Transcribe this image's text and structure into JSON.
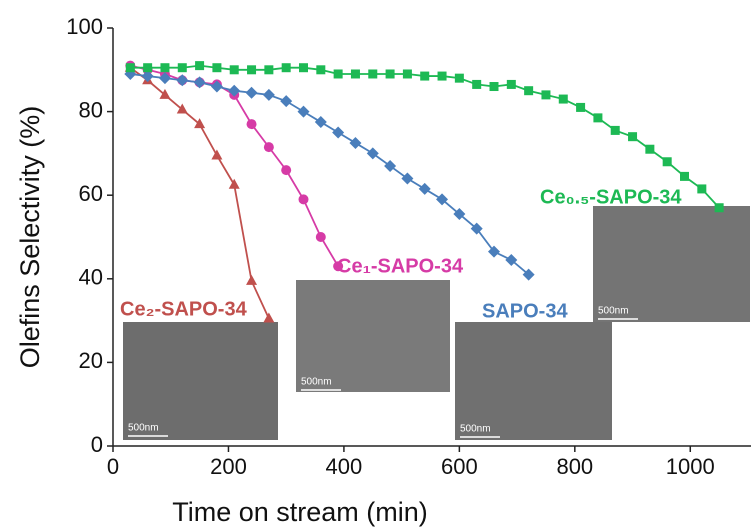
{
  "chart_data": {
    "type": "line",
    "xlabel": "Time on stream (min)",
    "ylabel": "Olefins Selectivity (%)",
    "xlim": [
      0,
      1100
    ],
    "xticks": [
      0,
      200,
      400,
      600,
      800,
      1000
    ],
    "ylim": [
      0,
      100
    ],
    "yticks": [
      0,
      20,
      40,
      60,
      80,
      100
    ],
    "series": [
      {
        "name": "Ce₂-SAPO-34",
        "color": "#c0504d",
        "marker": "triangle",
        "x": [
          30,
          60,
          90,
          120,
          150,
          180,
          210,
          240,
          270
        ],
        "values": [
          90.5,
          87.5,
          84,
          80.5,
          77,
          69.5,
          62.5,
          39.5,
          30.5
        ]
      },
      {
        "name": "Ce₁-SAPO-34",
        "color": "#d63ba6",
        "marker": "circle",
        "x": [
          30,
          60,
          90,
          120,
          150,
          180,
          210,
          240,
          270,
          300,
          330,
          360,
          390
        ],
        "values": [
          91,
          90,
          89,
          87.5,
          87,
          86.5,
          84,
          77,
          71.5,
          66,
          59,
          50,
          43
        ]
      },
      {
        "name": "SAPO-34",
        "color": "#4a7ebb",
        "marker": "diamond",
        "x": [
          30,
          60,
          90,
          120,
          150,
          180,
          210,
          240,
          270,
          300,
          330,
          360,
          390,
          420,
          450,
          480,
          510,
          540,
          570,
          600,
          630,
          660,
          690,
          720
        ],
        "values": [
          89,
          88.5,
          88,
          87.5,
          87,
          86,
          85,
          84.5,
          84,
          82.5,
          80,
          77.5,
          75,
          72.5,
          70,
          67,
          64,
          61.5,
          59,
          55.5,
          52,
          46.5,
          44.5,
          41
        ]
      },
      {
        "name": "Ce₀.₅-SAPO-34",
        "color": "#1db954",
        "marker": "square",
        "x": [
          30,
          60,
          90,
          120,
          150,
          180,
          210,
          240,
          270,
          300,
          330,
          360,
          390,
          420,
          450,
          480,
          510,
          540,
          570,
          600,
          630,
          660,
          690,
          720,
          750,
          780,
          810,
          840,
          870,
          900,
          930,
          960,
          990,
          1020,
          1050
        ],
        "values": [
          90.5,
          90.5,
          90.5,
          90.5,
          91,
          90.5,
          90,
          90,
          90,
          90.5,
          90.5,
          90,
          89,
          89,
          89,
          89,
          89,
          88.5,
          88.5,
          88,
          86.5,
          86,
          86.5,
          85,
          84,
          83,
          81,
          78.5,
          75.5,
          74,
          71,
          68,
          64.5,
          61.5,
          57
        ]
      }
    ],
    "inset_scale_labels": [
      "500nm",
      "500nm",
      "500nm",
      "500nm"
    ]
  }
}
